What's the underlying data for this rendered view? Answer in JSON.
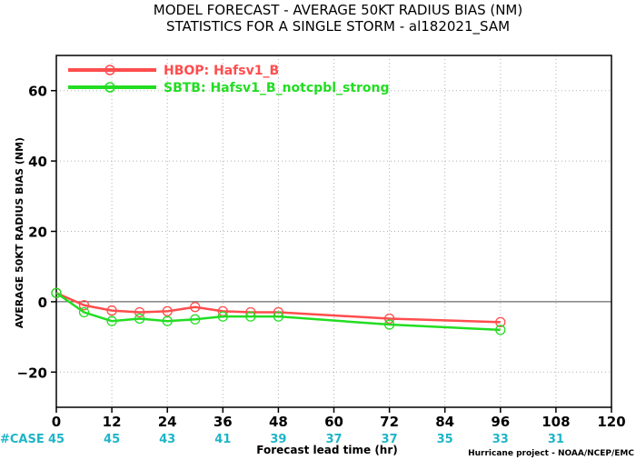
{
  "chart_data": {
    "type": "line",
    "title": "MODEL FORECAST - AVERAGE 50KT RADIUS BIAS (NM)",
    "subtitle": "STATISTICS FOR A SINGLE STORM - al182021_SAM",
    "xlabel": "Forecast lead time (hr)",
    "ylabel": "AVERAGE 50KT RADIUS BIAS (NM)",
    "xlim": [
      0,
      120
    ],
    "ylim": [
      -30,
      70
    ],
    "xticks": [
      0,
      12,
      24,
      36,
      48,
      60,
      72,
      84,
      96,
      108,
      120
    ],
    "yticks": [
      -20,
      0,
      20,
      40,
      60
    ],
    "grid": true,
    "zero_line": true,
    "legend_position": "top-left",
    "series": [
      {
        "name": "HBOP: Hafsv1_B",
        "color": "#ff4d4d",
        "x": [
          0,
          6,
          12,
          18,
          24,
          30,
          36,
          42,
          48,
          72,
          96
        ],
        "y": [
          2.5,
          -1.0,
          -2.5,
          -3.0,
          -2.7,
          -1.5,
          -2.7,
          -3.0,
          -3.0,
          -4.8,
          -5.8
        ]
      },
      {
        "name": "SBTB: Hafsv1_B_notcpbl_strong",
        "color": "#22dd22",
        "x": [
          0,
          6,
          12,
          18,
          24,
          30,
          36,
          42,
          48,
          72,
          96
        ],
        "y": [
          2.5,
          -3.0,
          -5.5,
          -4.8,
          -5.5,
          -5.0,
          -4.2,
          -4.2,
          -4.2,
          -6.5,
          -8.0
        ]
      }
    ],
    "cases": {
      "label": "#CASE",
      "x": [
        0,
        12,
        24,
        36,
        48,
        60,
        72,
        84,
        96,
        108
      ],
      "values": [
        "45",
        "45",
        "43",
        "41",
        "39",
        "37",
        "37",
        "35",
        "33",
        "31"
      ]
    },
    "credit": "Hurricane project - NOAA/NCEP/EMC"
  }
}
